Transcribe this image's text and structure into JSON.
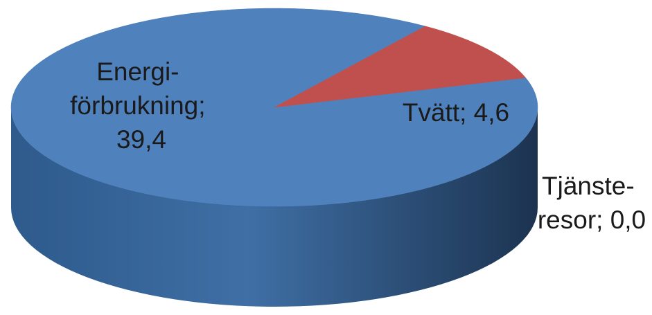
{
  "chart_data": {
    "type": "pie",
    "style": "3d",
    "slices": [
      {
        "label_lines": [
          "Energi-",
          "förbrukning;",
          "39,4"
        ],
        "value": 39.4,
        "color": "#4f81bd",
        "side_color": "#2c4a70"
      },
      {
        "label_lines": [
          "Tvätt; 4,6"
        ],
        "value": 4.6,
        "color": "#c0504d",
        "side_color": "#7b2a28"
      },
      {
        "label_lines": [
          "Tjänste-",
          "resor; 0,0"
        ],
        "value": 0.0,
        "color": "#9bbb59",
        "side_color": "#5f7a2c"
      }
    ]
  }
}
